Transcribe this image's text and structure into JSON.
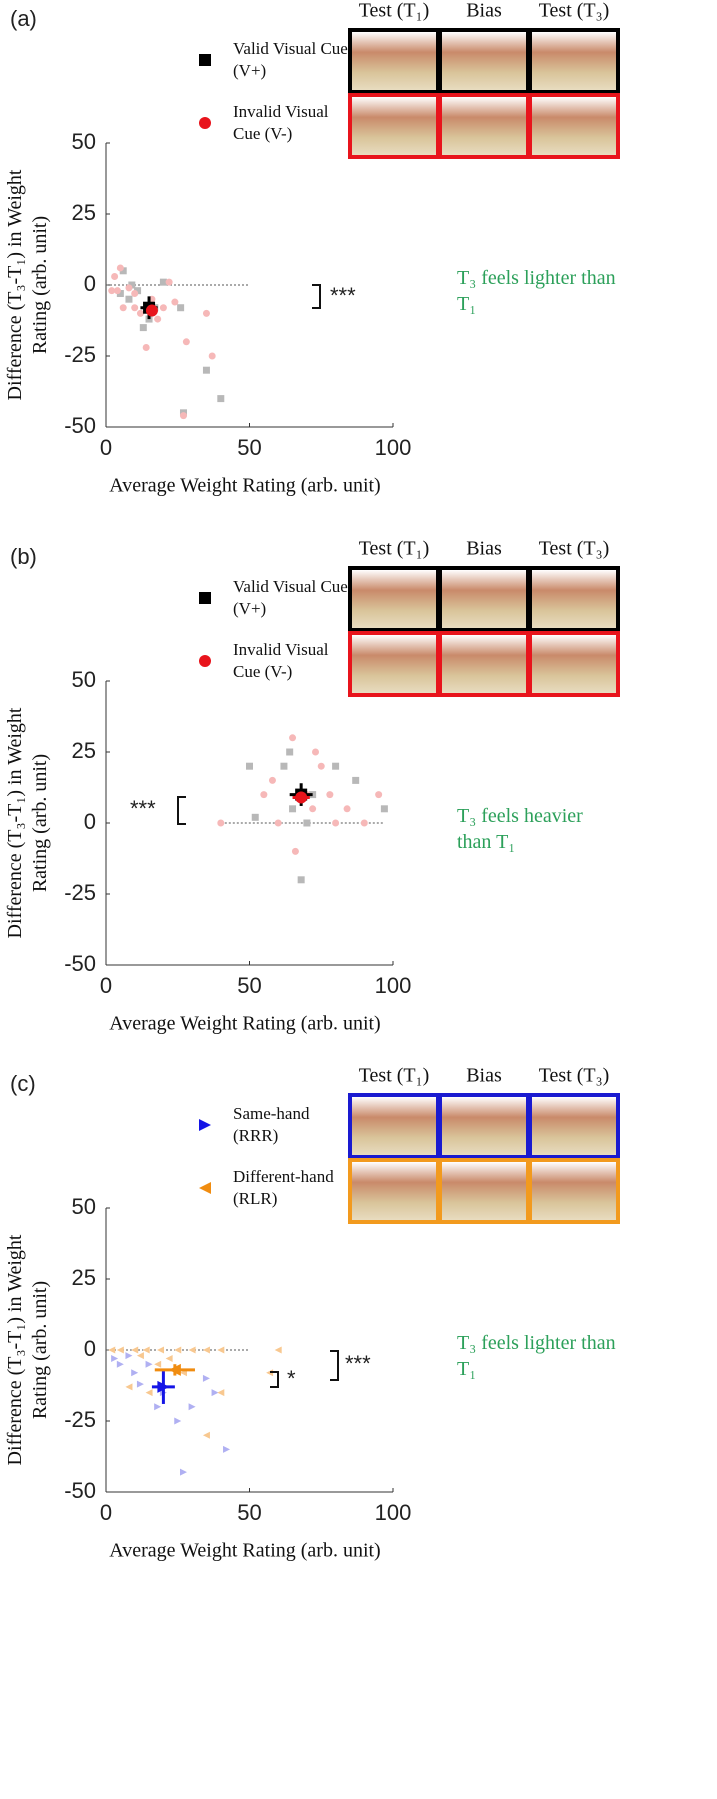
{
  "chart_data": [
    {
      "type": "scatter",
      "label": "(a)",
      "xlabel": "Average Weight Rating (arb. unit)",
      "ylabel": "Difference (T₃-T₁) in Weight Rating (arb. unit)",
      "xlim": [
        0,
        100
      ],
      "xticks": [
        0,
        50,
        100
      ],
      "ylim": [
        -50,
        50
      ],
      "yticks": [
        50,
        25,
        0,
        -25,
        -50
      ],
      "hline": {
        "y": 0,
        "x": [
          0,
          50
        ]
      },
      "photo_headers": [
        "Test (T₁)",
        "Bias",
        "Test (T₃)"
      ],
      "annotation": "T₃ feels lighter than T₁",
      "significance": [
        "***"
      ],
      "series": [
        {
          "name": "Valid Visual Cue (V+)",
          "marker": "square",
          "color": "#b8b8b8",
          "mean_color": "#000000",
          "x": [
            6,
            9,
            11,
            13,
            15,
            20,
            17,
            26,
            35,
            40,
            27,
            5,
            8
          ],
          "values": [
            5,
            0,
            -2,
            -15,
            -12,
            1,
            -8,
            -8,
            -30,
            -40,
            -45,
            -3,
            -5
          ],
          "mean": {
            "x": 15,
            "y": -8,
            "xerr": 3,
            "yerr": 4
          }
        },
        {
          "name": "Invalid Visual Cue (V-)",
          "marker": "circle",
          "color": "#f6b8b8",
          "mean_color": "#e8141c",
          "x": [
            3,
            5,
            2,
            4,
            8,
            10,
            12,
            14,
            16,
            18,
            20,
            22,
            24,
            28,
            35,
            37,
            27,
            6,
            10
          ],
          "values": [
            3,
            6,
            -2,
            -2,
            -1,
            -3,
            -10,
            -22,
            -5,
            -12,
            -8,
            1,
            -6,
            -20,
            -10,
            -25,
            -46,
            -8,
            -8
          ],
          "mean": {
            "x": 16,
            "y": -9,
            "xerr": 2,
            "yerr": 2
          }
        }
      ]
    },
    {
      "type": "scatter",
      "label": "(b)",
      "xlabel": "Average Weight Rating (arb. unit)",
      "ylabel": "Difference (T₃-T₁) in Weight Rating (arb. unit)",
      "xlim": [
        0,
        100
      ],
      "xticks": [
        0,
        50,
        100
      ],
      "ylim": [
        -50,
        50
      ],
      "yticks": [
        50,
        25,
        0,
        -25,
        -50
      ],
      "hline": {
        "y": 0,
        "x": [
          40,
          97
        ]
      },
      "photo_headers": [
        "Test (T₁)",
        "Bias",
        "Test (T₃)"
      ],
      "annotation": "T₃ feels heavier than T₁",
      "significance": [
        "***"
      ],
      "series": [
        {
          "name": "Valid Visual Cue (V+)",
          "marker": "square",
          "color": "#b8b8b8",
          "mean_color": "#000000",
          "x": [
            50,
            52,
            62,
            64,
            65,
            70,
            68,
            80,
            87,
            97,
            72
          ],
          "values": [
            20,
            2,
            20,
            25,
            5,
            0,
            -20,
            20,
            15,
            5,
            10
          ],
          "mean": {
            "x": 68,
            "y": 10,
            "xerr": 4,
            "yerr": 4
          }
        },
        {
          "name": "Invalid Visual Cue (V-)",
          "marker": "circle",
          "color": "#f6b8b8",
          "mean_color": "#e8141c",
          "x": [
            40,
            55,
            58,
            60,
            65,
            66,
            70,
            73,
            75,
            78,
            80,
            84,
            90,
            95,
            72
          ],
          "values": [
            0,
            10,
            15,
            0,
            30,
            -10,
            10,
            25,
            20,
            10,
            0,
            5,
            0,
            10,
            5
          ],
          "mean": {
            "x": 68,
            "y": 9,
            "xerr": 3,
            "yerr": 2
          }
        }
      ]
    },
    {
      "type": "scatter",
      "label": "(c)",
      "xlabel": "Average Weight Rating (arb. unit)",
      "ylabel": "Difference (T₃-T₁) in Weight Rating (arb. unit)",
      "xlim": [
        0,
        100
      ],
      "xticks": [
        0,
        50,
        100
      ],
      "ylim": [
        -50,
        50
      ],
      "yticks": [
        50,
        25,
        0,
        -25,
        -50
      ],
      "hline": {
        "y": 0,
        "x": [
          0,
          50
        ]
      },
      "photo_headers": [
        "Test (T₁)",
        "Bias",
        "Test (T₃)"
      ],
      "annotation": "T₃ feels lighter than T₁",
      "significance": [
        "*",
        "***"
      ],
      "series": [
        {
          "name": "Same-hand (RRR)",
          "marker": "tri-right",
          "color": "#b0b0f2",
          "mean_color": "#1414e6",
          "frame": "#1a1ad0",
          "x": [
            3,
            5,
            10,
            12,
            15,
            18,
            20,
            25,
            27,
            30,
            35,
            38,
            42,
            8
          ],
          "values": [
            -3,
            -5,
            -8,
            -12,
            -5,
            -20,
            -15,
            -25,
            -43,
            -20,
            -10,
            -15,
            -35,
            -2
          ],
          "mean": {
            "x": 20,
            "y": -13,
            "xerr": 4,
            "yerr": 6
          }
        },
        {
          "name": "Different-hand (RLR)",
          "marker": "tri-left",
          "color": "#f8c890",
          "mean_color": "#f08c10",
          "frame": "#f29a1e",
          "x": [
            2,
            5,
            10,
            14,
            19,
            25,
            30,
            35,
            40,
            60,
            8,
            15,
            18,
            22,
            27,
            35,
            40,
            57,
            12
          ],
          "values": [
            0,
            0,
            0,
            0,
            0,
            0,
            0,
            0,
            0,
            0,
            -13,
            -15,
            -5,
            -3,
            -8,
            -30,
            -15,
            -8,
            -2
          ],
          "mean": {
            "x": 24,
            "y": -7,
            "xerr": 7,
            "yerr": 2
          }
        }
      ]
    }
  ]
}
